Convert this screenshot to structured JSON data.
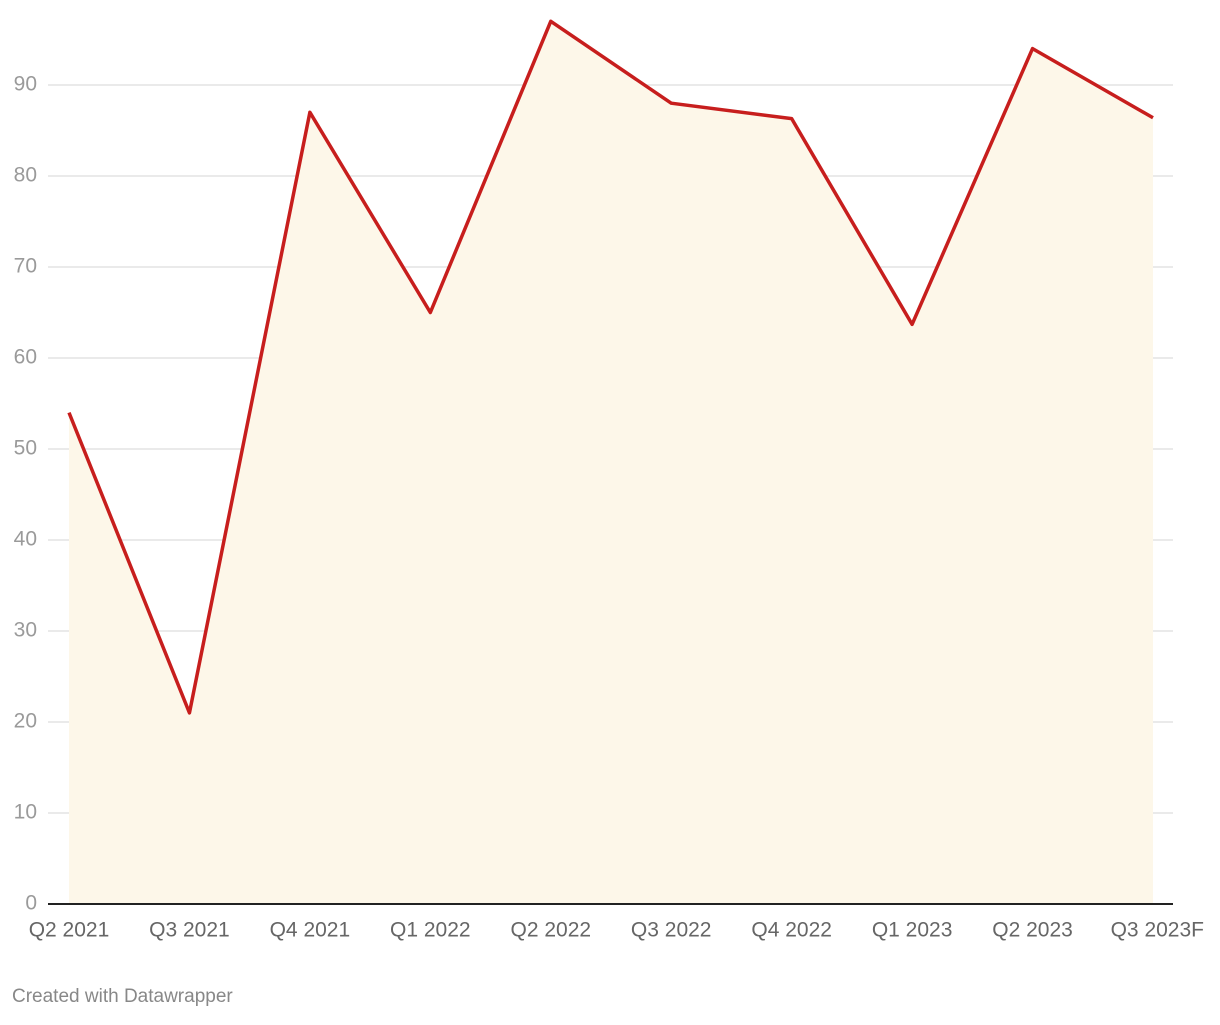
{
  "chart_data": {
    "type": "area",
    "categories": [
      "Q2 2021",
      "Q3 2021",
      "Q4 2021",
      "Q1 2022",
      "Q2 2022",
      "Q3 2022",
      "Q4 2022",
      "Q1 2023",
      "Q2 2023",
      "Q3 2023F"
    ],
    "values": [
      54,
      21,
      87,
      65,
      97,
      88,
      86.3,
      63.7,
      94,
      86.4
    ],
    "color": "#c71e1d",
    "fill": "#fdf7e9",
    "ylim": [
      0,
      98
    ],
    "yticks": [
      0,
      10,
      20,
      30,
      40,
      50,
      60,
      70,
      80,
      90
    ],
    "grid": true,
    "footer": "Created with Datawrapper"
  }
}
